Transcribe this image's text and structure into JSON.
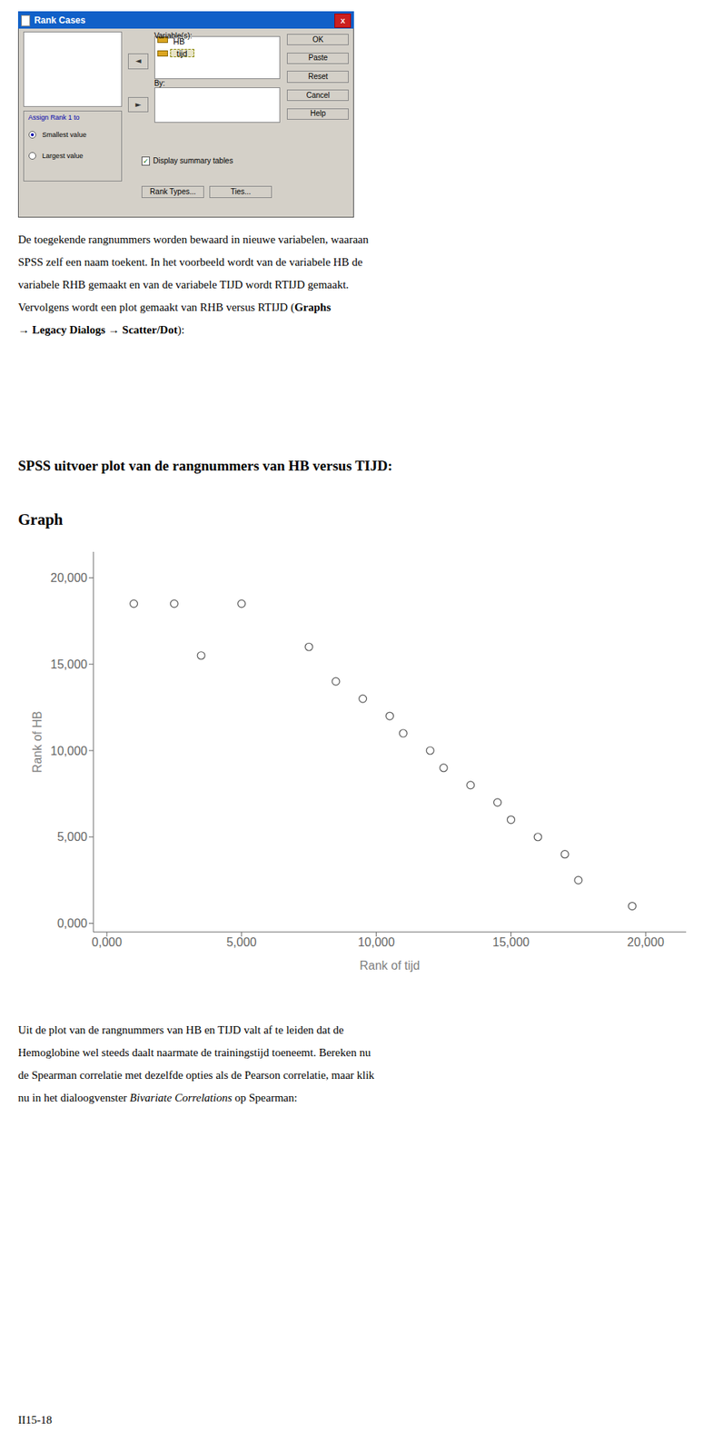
{
  "chart_data": {
    "type": "scatter",
    "title": "SPSS uitvoer plot van de rangnummers van HB versus TIJD:",
    "subtitle": "Graph",
    "x": [
      1000,
      2500,
      5000,
      3500,
      7500,
      8500,
      9500,
      10500,
      11000,
      12000,
      12500,
      13500,
      14500,
      15000,
      16000,
      17000,
      17500,
      19500
    ],
    "values": [
      18500,
      18500,
      18500,
      15500,
      16000,
      14000,
      13000,
      12000,
      11000,
      10000,
      9000,
      8000,
      7000,
      6000,
      5000,
      4000,
      2500,
      1000
    ],
    "color": "#555555",
    "marker": "circle",
    "xlim": [
      -500,
      21500
    ],
    "ylim": [
      -500,
      21500
    ],
    "xticks": [
      {
        "value": 0,
        "label": "0,000"
      },
      {
        "value": 5000,
        "label": "5,000"
      },
      {
        "value": 10000,
        "label": "10,000"
      },
      {
        "value": 15000,
        "label": "15,000"
      },
      {
        "value": 20000,
        "label": "20,000"
      }
    ],
    "yticks": [
      {
        "value": 0,
        "label": "0,000"
      },
      {
        "value": 5000,
        "label": "5,000"
      },
      {
        "value": 10000,
        "label": "10,000"
      },
      {
        "value": 15000,
        "label": "15,000"
      },
      {
        "value": 20000,
        "label": "20,000"
      }
    ],
    "xlabel": "Rank of tijd",
    "ylabel": "Rank of HB",
    "grid": false,
    "annotations": [
      "Rank Cases",
      "X",
      "◄",
      "Variable(s):",
      "HB",
      "tijd",
      "By:",
      "►",
      "OK",
      "Paste",
      "Reset",
      "Cancel",
      "Help",
      "Assign Rank 1 to",
      "Smallest value",
      "Largest value",
      "✓",
      "Display summary tables",
      "Rank Types...",
      "Ties...",
      "De toegekende rangnummers worden bewaard in nieuwe variabelen, waaraan",
      "SPSS zelf een naam toekent. In het voorbeeld wordt van de variabele HB de",
      "variabele RHB gemaakt en van de variabele TIJD wordt RTIJD gemaakt.",
      "Vervolgens wordt een plot gemaakt van RHB versus RTIJD (",
      "Graphs",
      "→ Legacy Dialogs → Scatter/Dot",
      "):",
      "Uit de plot van de rangnummers van HB en TIJD valt af te leiden dat de",
      "Hemoglobine wel steeds daalt naarmate de trainingstijd toeneemt. Bereken nu",
      "de Spearman correlatie met dezelfde opties als de Pearson correlatie, maar klik",
      "nu in het dialoogvenster ",
      "Bivariate Correlations",
      " op Spearman:",
      "II15-18"
    ]
  }
}
